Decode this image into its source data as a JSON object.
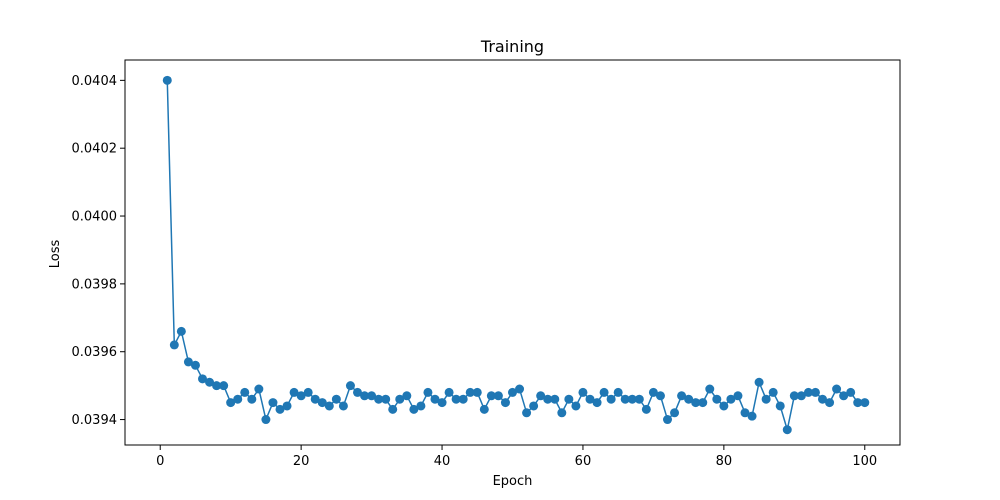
{
  "chart_data": {
    "type": "line",
    "title": "Training",
    "xlabel": "Epoch",
    "ylabel": "Loss",
    "xlim": [
      -5,
      105
    ],
    "ylim": [
      0.039325,
      0.04046
    ],
    "xticks": [
      0,
      20,
      40,
      60,
      80,
      100
    ],
    "xtick_labels": [
      "0",
      "20",
      "40",
      "60",
      "80",
      "100"
    ],
    "yticks": [
      0.0394,
      0.0396,
      0.0398,
      0.04,
      0.0402,
      0.0404
    ],
    "ytick_labels": [
      "0.0394",
      "0.0396",
      "0.0398",
      "0.0400",
      "0.0402",
      "0.0404"
    ],
    "grid": false,
    "color": "#1f77b4",
    "marker": "circle",
    "x": [
      1,
      2,
      3,
      4,
      5,
      6,
      7,
      8,
      9,
      10,
      11,
      12,
      13,
      14,
      15,
      16,
      17,
      18,
      19,
      20,
      21,
      22,
      23,
      24,
      25,
      26,
      27,
      28,
      29,
      30,
      31,
      32,
      33,
      34,
      35,
      36,
      37,
      38,
      39,
      40,
      41,
      42,
      43,
      44,
      45,
      46,
      47,
      48,
      49,
      50,
      51,
      52,
      53,
      54,
      55,
      56,
      57,
      58,
      59,
      60,
      61,
      62,
      63,
      64,
      65,
      66,
      67,
      68,
      69,
      70,
      71,
      72,
      73,
      74,
      75,
      76,
      77,
      78,
      79,
      80,
      81,
      82,
      83,
      84,
      85,
      86,
      87,
      88,
      89,
      90,
      91,
      92,
      93,
      94,
      95,
      96,
      97,
      98,
      99,
      100
    ],
    "y": [
      0.0404,
      0.03962,
      0.03966,
      0.03957,
      0.03956,
      0.03952,
      0.03951,
      0.0395,
      0.0395,
      0.03945,
      0.03946,
      0.03948,
      0.03946,
      0.03949,
      0.0394,
      0.03945,
      0.03943,
      0.03944,
      0.03948,
      0.03947,
      0.03948,
      0.03946,
      0.03945,
      0.03944,
      0.03946,
      0.03944,
      0.0395,
      0.03948,
      0.03947,
      0.03947,
      0.03946,
      0.03946,
      0.03943,
      0.03946,
      0.03947,
      0.03943,
      0.03944,
      0.03948,
      0.03946,
      0.03945,
      0.03948,
      0.03946,
      0.03946,
      0.03948,
      0.03948,
      0.03943,
      0.03947,
      0.03947,
      0.03945,
      0.03948,
      0.03949,
      0.03942,
      0.03944,
      0.03947,
      0.03946,
      0.03946,
      0.03942,
      0.03946,
      0.03944,
      0.03948,
      0.03946,
      0.03945,
      0.03948,
      0.03946,
      0.03948,
      0.03946,
      0.03946,
      0.03946,
      0.03943,
      0.03948,
      0.03947,
      0.0394,
      0.03942,
      0.03947,
      0.03946,
      0.03945,
      0.03945,
      0.03949,
      0.03946,
      0.03944,
      0.03946,
      0.03947,
      0.03942,
      0.03941,
      0.03951,
      0.03946,
      0.03948,
      0.03944,
      0.03937,
      0.03947,
      0.03947,
      0.03948,
      0.03948,
      0.03946,
      0.03945,
      0.03949,
      0.03947,
      0.03948,
      0.03945,
      0.03945
    ]
  }
}
